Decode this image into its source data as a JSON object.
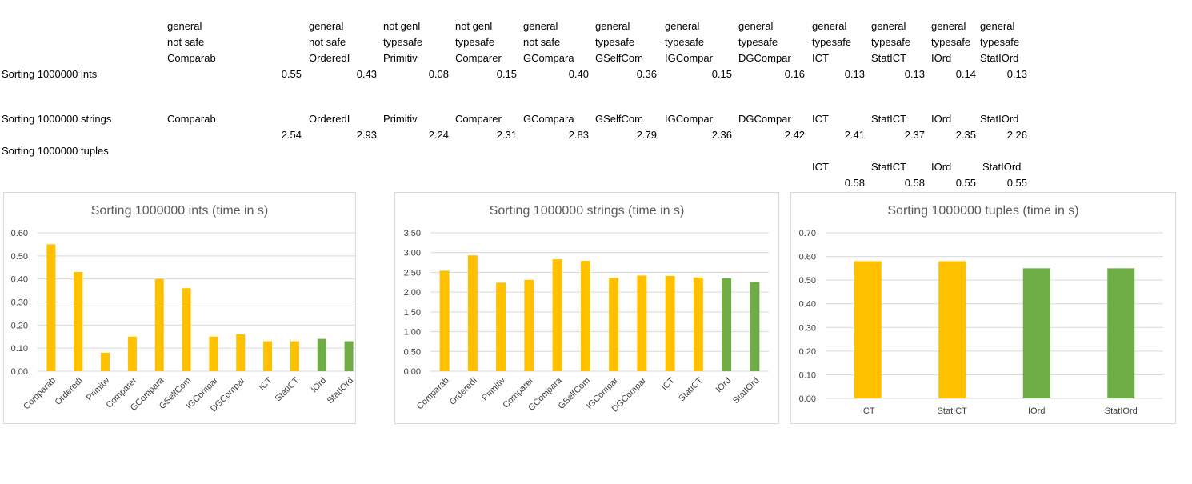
{
  "sheet": {
    "header_rows": [
      [
        "general",
        "general",
        "not genl",
        "not genl",
        "general",
        "general",
        "general",
        "general",
        "general",
        "general",
        "general",
        "general"
      ],
      [
        "not safe",
        "not safe",
        "typesafe",
        "typesafe",
        "not safe",
        "typesafe",
        "typesafe",
        "typesafe",
        "typesafe",
        "typesafe",
        "typesafe",
        "typesafe"
      ],
      [
        "Comparab",
        "OrderedI",
        "Primitiv",
        "Comparer",
        "GCompara",
        "GSelfCom",
        "IGCompar",
        "DGCompar",
        "ICT",
        "StatICT",
        "IOrd",
        "StatIOrd"
      ]
    ],
    "ints_label": "Sorting 1000000 ints",
    "ints_values": [
      "0.55",
      "0.43",
      "0.08",
      "0.15",
      "0.40",
      "0.36",
      "0.15",
      "0.16",
      "0.13",
      "0.13",
      "0.14",
      "0.13"
    ],
    "strings_label": "Sorting 1000000 strings",
    "strings_names": [
      "Comparab",
      "OrderedI",
      "Primitiv",
      "Comparer",
      "GCompara",
      "GSelfCom",
      "IGCompar",
      "DGCompar",
      "ICT",
      "StatICT",
      "IOrd",
      "StatIOrd"
    ],
    "strings_values": [
      "2.54",
      "2.93",
      "2.24",
      "2.31",
      "2.83",
      "2.79",
      "2.36",
      "2.42",
      "2.41",
      "2.37",
      "2.35",
      "2.26"
    ],
    "tuples_label": "Sorting 1000000 tuples",
    "tuples_names": [
      "ICT",
      "StatICT",
      "IOrd",
      "StatIOrd"
    ],
    "tuples_values": [
      "0.58",
      "0.58",
      "0.55",
      "0.55"
    ]
  },
  "colors": {
    "yellow": "#FFC000",
    "green": "#70AD47",
    "grid": "#d9d9d9",
    "axis_text": "#595959"
  },
  "chart_data": [
    {
      "type": "bar",
      "title": "Sorting 1000000 ints (time in s)",
      "categories": [
        "Comparab",
        "OrderedI",
        "Primitiv",
        "Comparer",
        "GCompara",
        "GSelfCom",
        "IGCompar",
        "DGCompar",
        "ICT",
        "StatICT",
        "IOrd",
        "StatIOrd"
      ],
      "values": [
        0.55,
        0.43,
        0.08,
        0.15,
        0.4,
        0.36,
        0.15,
        0.16,
        0.13,
        0.13,
        0.14,
        0.13
      ],
      "bar_colors": [
        "yellow",
        "yellow",
        "yellow",
        "yellow",
        "yellow",
        "yellow",
        "yellow",
        "yellow",
        "yellow",
        "yellow",
        "green",
        "green"
      ],
      "ylim": [
        0,
        0.6
      ],
      "yticks": [
        "0.00",
        "0.10",
        "0.20",
        "0.30",
        "0.40",
        "0.50",
        "0.60"
      ],
      "grid": true
    },
    {
      "type": "bar",
      "title": "Sorting 1000000 strings (time in s)",
      "categories": [
        "Comparab",
        "OrderedI",
        "Primitiv",
        "Comparer",
        "GCompara",
        "GSelfCom",
        "IGCompar",
        "DGCompar",
        "ICT",
        "StatICT",
        "IOrd",
        "StatIOrd"
      ],
      "values": [
        2.54,
        2.93,
        2.24,
        2.31,
        2.83,
        2.79,
        2.36,
        2.42,
        2.41,
        2.37,
        2.35,
        2.26
      ],
      "bar_colors": [
        "yellow",
        "yellow",
        "yellow",
        "yellow",
        "yellow",
        "yellow",
        "yellow",
        "yellow",
        "yellow",
        "yellow",
        "green",
        "green"
      ],
      "ylim": [
        0,
        3.5
      ],
      "yticks": [
        "0.00",
        "0.50",
        "1.00",
        "1.50",
        "2.00",
        "2.50",
        "3.00",
        "3.50"
      ],
      "grid": true
    },
    {
      "type": "bar",
      "title": "Sorting 1000000 tuples (time in s)",
      "categories": [
        "ICT",
        "StatICT",
        "IOrd",
        "StatIOrd"
      ],
      "values": [
        0.58,
        0.58,
        0.55,
        0.55
      ],
      "bar_colors": [
        "yellow",
        "yellow",
        "green",
        "green"
      ],
      "ylim": [
        0,
        0.7
      ],
      "yticks": [
        "0.00",
        "0.10",
        "0.20",
        "0.30",
        "0.40",
        "0.50",
        "0.60",
        "0.70"
      ],
      "grid": true
    }
  ]
}
